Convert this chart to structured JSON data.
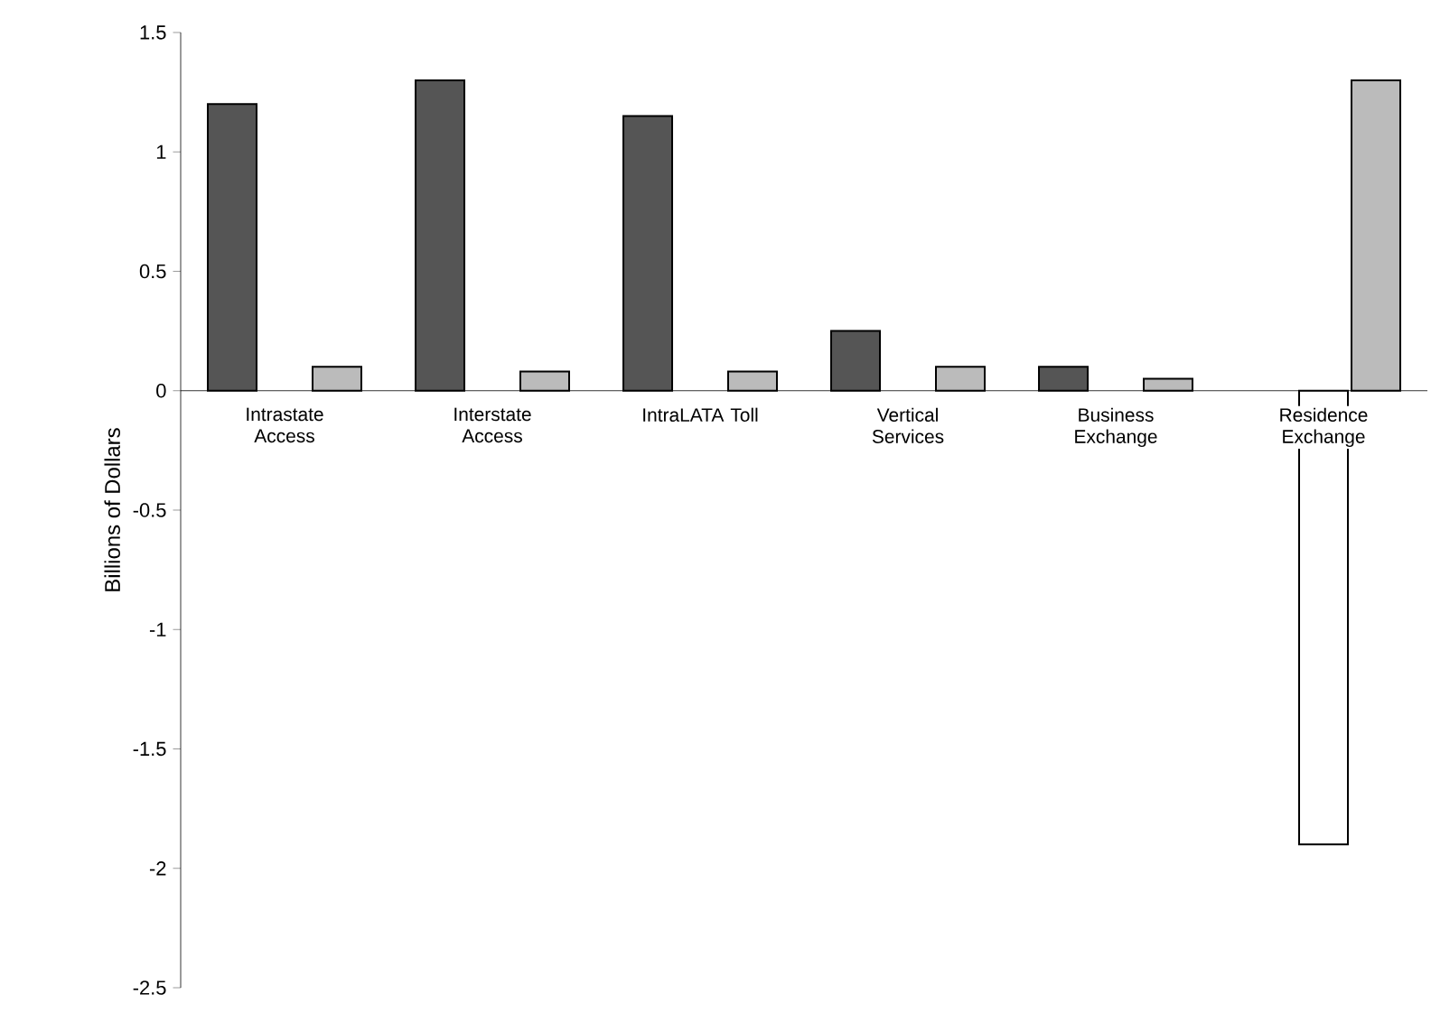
{
  "chart_data": {
    "type": "bar",
    "ylabel": "Billions of Dollars",
    "categories": [
      "Intrastate Access",
      "Interstate Access",
      "IntraLATA Toll",
      "Vertical Services",
      "Business Exchange",
      "Residence Exchange"
    ],
    "series": [
      {
        "color": "#555555",
        "values": [
          1.2,
          1.3,
          1.15,
          0.25,
          0.1,
          null
        ]
      },
      {
        "color": "#ffffff",
        "values": [
          null,
          null,
          null,
          null,
          null,
          -1.9
        ]
      },
      {
        "color": "#bbbbbb",
        "values": [
          0.1,
          0.08,
          0.08,
          0.1,
          0.05,
          1.3
        ]
      }
    ],
    "ylim": [
      -2.5,
      1.5
    ],
    "yticks": [
      -2.5,
      -2,
      -1.5,
      -1,
      -0.5,
      0,
      0.5,
      1,
      1.5
    ],
    "grid": false
  }
}
